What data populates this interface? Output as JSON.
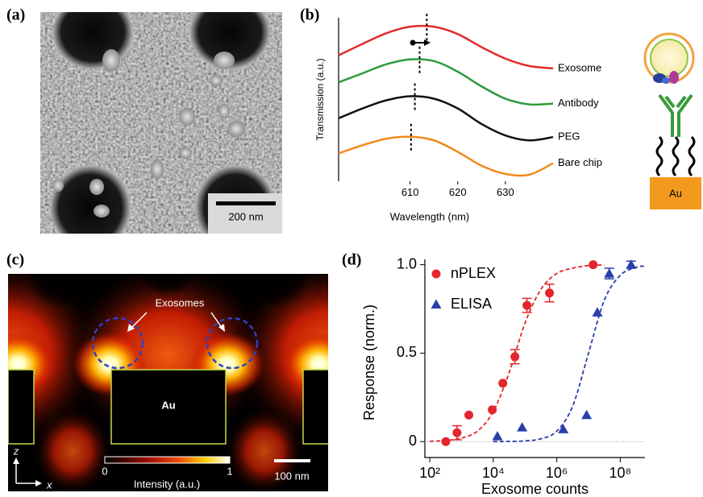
{
  "panel_labels": [
    "(a)",
    "(b)",
    "(c)",
    "(d)"
  ],
  "sem_image": {
    "scale_bar": "200 nm"
  },
  "field_map": {
    "annotation": "Exosomes",
    "block_label": "Au",
    "colorbar_ticks": [
      0,
      1
    ],
    "colorbar_label": "Intensity (a.u.)",
    "scale_bar": "100 nm",
    "axis_z": "z",
    "axis_x": "x"
  },
  "schematic": {
    "substrate_label": "Au"
  },
  "chart_data": [
    {
      "type": "line",
      "x_label": "Wavelength (nm)",
      "y_label": "Transmission (a.u.)",
      "x": [
        595,
        600,
        605,
        610,
        615,
        620,
        625,
        630,
        635,
        640
      ],
      "xlim": [
        595,
        640
      ],
      "xticks": [
        610,
        620,
        630
      ],
      "ylim": [
        0,
        10
      ],
      "series": [
        {
          "name": "Exosome",
          "color": "#e32b2b",
          "peak": 613.5,
          "values": [
            7.7,
            8.4,
            9.05,
            9.45,
            9.45,
            9.0,
            8.2,
            7.5,
            7.05,
            6.9
          ]
        },
        {
          "name": "Antibody",
          "color": "#2f9a3c",
          "peak": 612,
          "values": [
            6.05,
            6.6,
            7.15,
            7.45,
            7.35,
            6.7,
            5.8,
            5.05,
            4.7,
            4.75
          ]
        },
        {
          "name": "PEG",
          "color": "#111111",
          "peak": 611,
          "values": [
            3.85,
            4.45,
            4.95,
            5.2,
            5.05,
            4.45,
            3.5,
            2.8,
            2.5,
            2.7
          ]
        },
        {
          "name": "Bare chip",
          "color": "#f28a1c",
          "peak": 610.2,
          "values": [
            1.7,
            2.2,
            2.6,
            2.72,
            2.5,
            1.8,
            0.95,
            0.45,
            0.4,
            1.1
          ]
        }
      ]
    },
    {
      "type": "scatter",
      "x_label": "Exosome counts",
      "y_label": "Response (norm.)",
      "log_x": true,
      "xlim": [
        70,
        600000000
      ],
      "ylim": [
        -0.09,
        1.03
      ],
      "xticks": [
        {
          "value": 100,
          "label": "10²"
        },
        {
          "value": 10000,
          "label": "10⁴"
        },
        {
          "value": 1000000,
          "label": "10⁶"
        },
        {
          "value": 100000000,
          "label": "10⁸"
        }
      ],
      "yticks": [
        0,
        0.5,
        {
          "value": 1,
          "label": "1.0"
        }
      ],
      "zero_line": true,
      "legend": "upper-left",
      "series": [
        {
          "name": "nPLEX",
          "color": "#e3262b",
          "marker": "circle",
          "x": [
            320,
            720,
            1700,
            9300,
            20000,
            48000,
            115000,
            590000,
            14000000
          ],
          "values": [
            0.0,
            0.05,
            0.15,
            0.18,
            0.33,
            0.48,
            0.77,
            0.84,
            1.0
          ],
          "errors": [
            null,
            0.04,
            null,
            null,
            null,
            0.04,
            0.04,
            0.05,
            null
          ],
          "fit": {
            "x": [
              100,
              316,
              1000,
              3162,
              10000,
              31623,
              100000,
              316228,
              1000000,
              3162278,
              10000000,
              31622777
            ],
            "values": [
              0.002,
              0.006,
              0.02,
              0.059,
              0.17,
              0.39,
              0.67,
              0.86,
              0.95,
              0.98,
              0.995,
              0.998
            ]
          }
        },
        {
          "name": "ELISA",
          "color": "#2a3fa8",
          "marker": "triangle",
          "x": [
            13500,
            81000,
            1600000,
            8700000,
            19000000,
            45000000,
            220000000
          ],
          "values": [
            0.03,
            0.08,
            0.07,
            0.15,
            0.73,
            0.95,
            1.0
          ],
          "errors": [
            null,
            null,
            null,
            null,
            null,
            0.03,
            0.02
          ],
          "fit": {
            "x": [
              10000,
              31623,
              100000,
              316228,
              1000000,
              3162278,
              10000000,
              31622777,
              100000000,
              316227766,
              562341325
            ],
            "values": [
              0.0,
              0.001,
              0.004,
              0.016,
              0.059,
              0.2,
              0.5,
              0.8,
              0.94,
              0.985,
              0.992
            ]
          }
        }
      ]
    }
  ]
}
